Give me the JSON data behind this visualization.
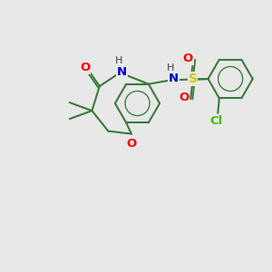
{
  "bg_color": "#e8e8e8",
  "bond_color": "#3a7a3a",
  "bond_width": 1.5,
  "atom_colors": {
    "O": "#ff0000",
    "N_amide": "#0000cc",
    "N_sulfonamide": "#0000cc",
    "S": "#cccc00",
    "Cl": "#44bb00",
    "H": "#404040"
  },
  "figsize": [
    3.0,
    3.0
  ],
  "dpi": 100
}
